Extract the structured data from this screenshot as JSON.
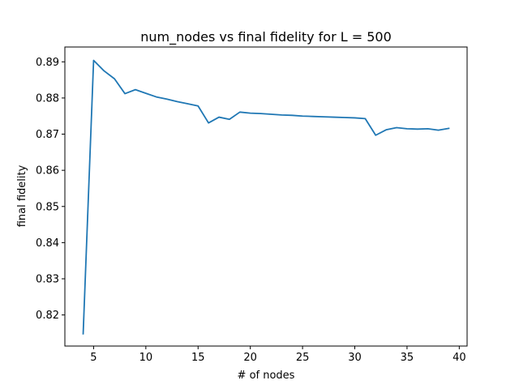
{
  "chart_data": {
    "type": "line",
    "title": "num_nodes vs final fidelity for L = 500",
    "xlabel": "# of nodes",
    "ylabel": "final fidelity",
    "xlim": [
      2.25,
      40.75
    ],
    "ylim": [
      0.8114,
      0.8941
    ],
    "xticks": [
      5,
      10,
      15,
      20,
      25,
      30,
      35,
      40
    ],
    "xtick_labels": [
      "5",
      "10",
      "15",
      "20",
      "25",
      "30",
      "35",
      "40"
    ],
    "yticks": [
      0.82,
      0.83,
      0.84,
      0.85,
      0.86,
      0.87,
      0.88,
      0.89
    ],
    "ytick_labels": [
      "0.82",
      "0.83",
      "0.84",
      "0.85",
      "0.86",
      "0.87",
      "0.88",
      "0.89"
    ],
    "grid": false,
    "series": [
      {
        "color": "#1f77b4",
        "x": [
          4,
          5,
          6,
          7,
          8,
          9,
          10,
          11,
          12,
          13,
          14,
          15,
          16,
          17,
          18,
          19,
          20,
          21,
          22,
          23,
          24,
          25,
          26,
          27,
          28,
          29,
          30,
          31,
          32,
          33,
          34,
          35,
          36,
          37,
          38,
          39
        ],
        "y": [
          0.8148,
          0.8904,
          0.8875,
          0.8853,
          0.8812,
          0.8823,
          0.8813,
          0.8803,
          0.8797,
          0.879,
          0.8784,
          0.8778,
          0.8731,
          0.8747,
          0.8741,
          0.8761,
          0.8758,
          0.8757,
          0.8755,
          0.8753,
          0.8752,
          0.875,
          0.8749,
          0.8748,
          0.8747,
          0.8746,
          0.8745,
          0.8743,
          0.8697,
          0.8712,
          0.8718,
          0.8715,
          0.8714,
          0.8715,
          0.8711,
          0.8716
        ]
      }
    ]
  }
}
